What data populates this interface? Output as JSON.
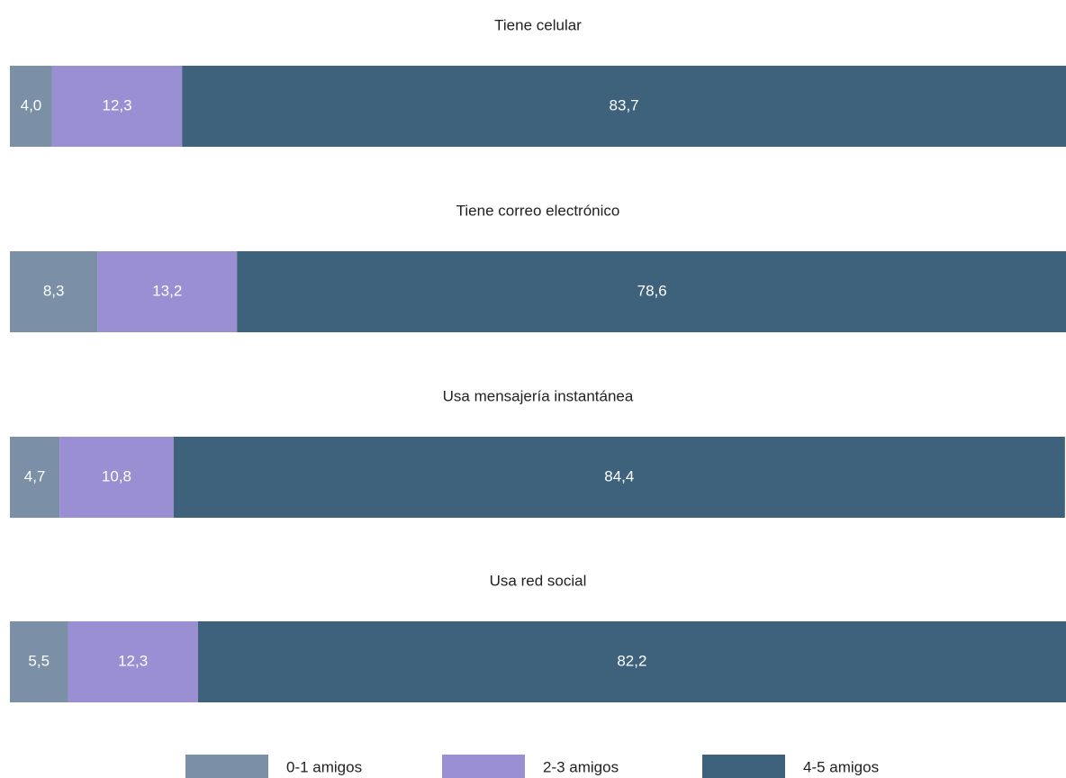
{
  "chart_data": {
    "type": "bar",
    "orientation": "horizontal",
    "stacked": true,
    "categories": [
      "Tiene celular",
      "Tiene correo electrónico",
      "Usa mensajería instantánea",
      "Usa red social"
    ],
    "xlim": [
      0,
      100
    ],
    "series": [
      {
        "name": "0-1 amigos",
        "color": "#7b90a6",
        "values": [
          4.0,
          8.3,
          4.7,
          5.5
        ],
        "value_labels": [
          "4,0",
          "8,3",
          "4,7",
          "5,5"
        ]
      },
      {
        "name": "2-3 amigos",
        "color": "#9a8fd3",
        "values": [
          12.3,
          13.2,
          10.8,
          12.3
        ],
        "value_labels": [
          "12,3",
          "13,2",
          "10,8",
          "12,3"
        ]
      },
      {
        "name": "4-5 amigos",
        "color": "#3f627c",
        "values": [
          83.7,
          78.6,
          84.4,
          82.2
        ],
        "value_labels": [
          "83,7",
          "78,6",
          "84,4",
          "82,2"
        ]
      }
    ],
    "legend": "bottom"
  }
}
